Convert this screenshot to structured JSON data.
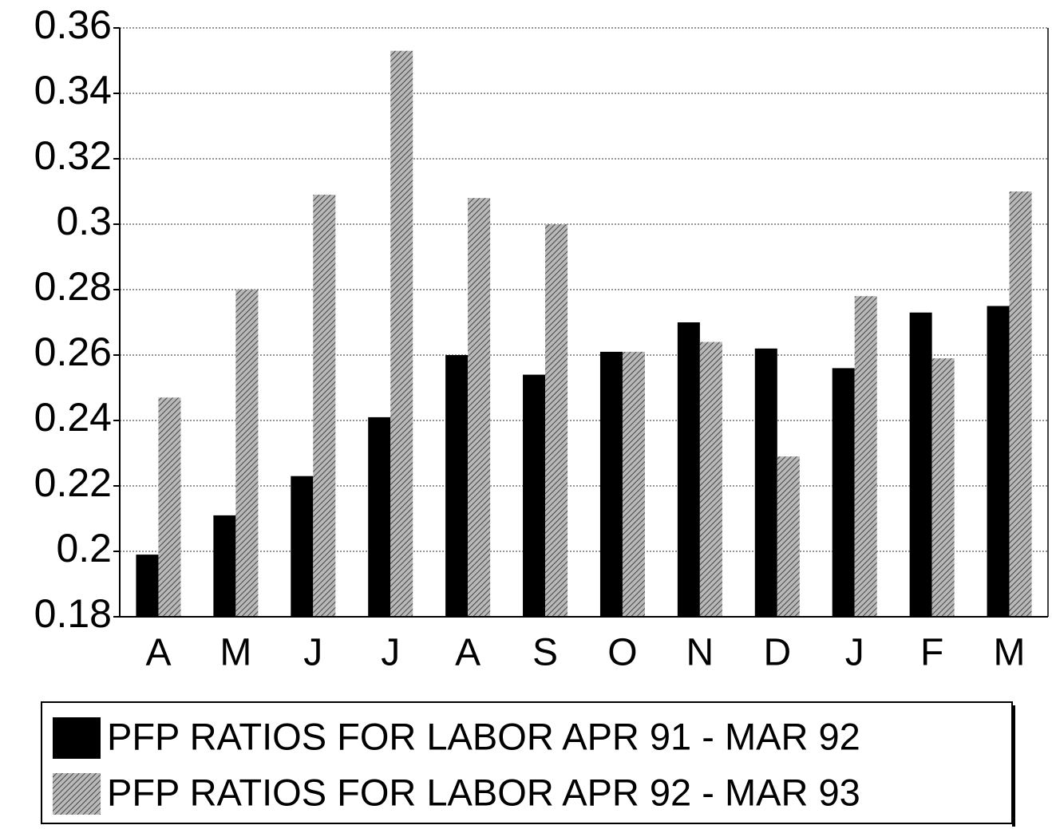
{
  "chart_data": {
    "type": "bar",
    "categories": [
      "A",
      "M",
      "J",
      "J",
      "A",
      "S",
      "O",
      "N",
      "D",
      "J",
      "F",
      "M"
    ],
    "series": [
      {
        "name": "PFP RATIOS FOR LABOR APR 91 - MAR 92",
        "color": "#000000",
        "values": [
          0.199,
          0.211,
          0.223,
          0.241,
          0.26,
          0.254,
          0.261,
          0.27,
          0.262,
          0.256,
          0.273,
          0.275
        ]
      },
      {
        "name": "PFP RATIOS FOR LABOR APR 92 - MAR 93",
        "color": "#9a9a9a",
        "values": [
          0.247,
          0.28,
          0.309,
          0.353,
          0.308,
          0.3,
          0.261,
          0.264,
          0.229,
          0.278,
          0.259,
          0.31
        ]
      }
    ],
    "ylim": [
      0.18,
      0.36
    ],
    "yticks": [
      0.18,
      0.2,
      0.22,
      0.24,
      0.26,
      0.28,
      0.3,
      0.32,
      0.34,
      0.36
    ],
    "grid": true
  }
}
